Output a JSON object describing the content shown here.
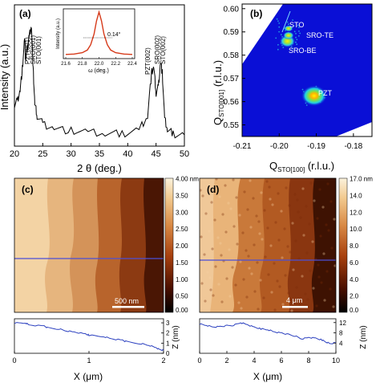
{
  "figure": {
    "panel_a": {
      "label": "(a)",
      "ylabel": "Intensity (a.u.)",
      "xlabel": "2 θ (deg.)",
      "xticks": [
        "20",
        "25",
        "30",
        "35",
        "40",
        "45",
        "50"
      ],
      "peak_labels": [
        "PZT(001)",
        "SRO(001)",
        "STO(001)",
        "PZT(002)",
        "SRO(002)",
        "STO(002)"
      ],
      "inset": {
        "ylabel": "Intensity (a.u.)",
        "xlabel": "ω (deg.)",
        "xticks": [
          "21.6",
          "21.8",
          "22.0",
          "22.2",
          "22.4"
        ],
        "fwhm_label": "0.14°"
      }
    },
    "panel_b": {
      "label": "(b)",
      "xlabel": "Q",
      "xlabel_sub": "STO[100]",
      "xlabel_unit": " (r.l.u.)",
      "ylabel": "Q",
      "ylabel_sub": "STO[001]",
      "ylabel_unit": " (r.l.u.)",
      "xticks": [
        "-0.21",
        "-0.20",
        "-0.19",
        "-0.18"
      ],
      "yticks": [
        "0.55",
        "0.56",
        "0.57",
        "0.58",
        "0.59",
        "0.60"
      ],
      "spot_labels": [
        "STO",
        "SRO-TE",
        "SRO-BE",
        "PZT"
      ]
    },
    "panel_c": {
      "label": "(c)",
      "colorbar_ticks": [
        "4.00 nm",
        "3.50",
        "3.00",
        "2.50",
        "2.00",
        "1.50",
        "1.00",
        "0.50",
        "0.00"
      ],
      "scalebar": "500 nm",
      "profile_yticks": [
        "0",
        "1",
        "2",
        "3"
      ],
      "profile_ylabel": "Z (nm)",
      "profile_xticks": [
        "0",
        "1",
        "2"
      ],
      "profile_xlabel": "X (μm)"
    },
    "panel_d": {
      "label": "(d)",
      "colorbar_ticks": [
        "17.0 nm",
        "14.0",
        "12.0",
        "10.0",
        "8.0",
        "6.0",
        "4.0",
        "2.0",
        "0.0"
      ],
      "scalebar": "4 μm",
      "profile_yticks": [
        "4",
        "8",
        "12"
      ],
      "profile_ylabel": "Z (nm)",
      "profile_xticks": [
        "0",
        "2",
        "4",
        "6",
        "8",
        "10"
      ],
      "profile_xlabel": "X (μm)"
    }
  },
  "chart_data": [
    {
      "type": "line",
      "title": "",
      "xlabel": "2 θ (deg.)",
      "ylabel": "Intensity (a.u.)",
      "xlim": [
        20,
        50
      ],
      "x": [
        20,
        20.5,
        21,
        21.4,
        21.8,
        22.0,
        22.3,
        22.6,
        23.0,
        23.3,
        23.6,
        24,
        25,
        27,
        30,
        33,
        36,
        39,
        42,
        43.5,
        44.2,
        44.6,
        45.0,
        45.4,
        45.8,
        46.1,
        46.5,
        47,
        48,
        50
      ],
      "y": [
        0.3,
        0.32,
        0.4,
        0.55,
        0.76,
        0.62,
        0.7,
        0.78,
        0.86,
        0.55,
        0.3,
        0.22,
        0.16,
        0.13,
        0.11,
        0.1,
        0.09,
        0.09,
        0.12,
        0.22,
        0.52,
        0.56,
        0.38,
        0.42,
        0.6,
        0.52,
        0.2,
        0.12,
        0.09,
        0.08
      ]
    },
    {
      "type": "line",
      "title": "",
      "xlabel": "ω (deg.)",
      "ylabel": "Intensity (a.u.)",
      "xlim": [
        21.6,
        22.4
      ],
      "x": [
        21.6,
        21.7,
        21.8,
        21.86,
        21.9,
        21.94,
        21.97,
        22.0,
        22.03,
        22.06,
        22.1,
        22.14,
        22.2,
        22.3,
        22.4
      ],
      "y": [
        0.04,
        0.05,
        0.08,
        0.14,
        0.26,
        0.5,
        0.8,
        1.0,
        0.8,
        0.5,
        0.26,
        0.14,
        0.08,
        0.05,
        0.04
      ],
      "fwhm": 0.14
    },
    {
      "type": "scatter",
      "title": "",
      "xlabel": "Q STO[100] (r.l.u.)",
      "ylabel": "Q STO[001] (r.l.u.)",
      "xlim": [
        -0.21,
        -0.175
      ],
      "ylim": [
        0.545,
        0.602
      ],
      "points": [
        {
          "name": "STO",
          "x": -0.1975,
          "y": 0.5915
        },
        {
          "name": "SRO-TE",
          "x": -0.1975,
          "y": 0.5885
        },
        {
          "name": "SRO-BE",
          "x": -0.1978,
          "y": 0.586
        },
        {
          "name": "PZT",
          "x": -0.1906,
          "y": 0.5625
        }
      ]
    },
    {
      "type": "line",
      "title": "",
      "xlabel": "X (μm)",
      "ylabel": "Z (nm)",
      "xlim": [
        0,
        2
      ],
      "ylim": [
        0,
        3.4
      ],
      "x": [
        0,
        0.15,
        0.2,
        0.4,
        0.45,
        0.6,
        0.7,
        0.8,
        0.95,
        1.0,
        1.2,
        1.3,
        1.45,
        1.5,
        1.7,
        1.8,
        1.9,
        1.95,
        2.0
      ],
      "y": [
        3.0,
        3.0,
        2.8,
        2.7,
        2.5,
        2.4,
        2.2,
        2.1,
        1.9,
        1.8,
        1.65,
        1.45,
        1.3,
        1.15,
        0.95,
        0.8,
        0.55,
        0.35,
        0.3
      ]
    },
    {
      "type": "line",
      "title": "",
      "xlabel": "X (μm)",
      "ylabel": "Z (nm)",
      "xlim": [
        0,
        10
      ],
      "ylim": [
        0,
        13.5
      ],
      "x": [
        0,
        0.5,
        1.0,
        1.5,
        2.0,
        2.5,
        3.0,
        3.5,
        4.0,
        4.5,
        5.0,
        5.5,
        6.0,
        6.5,
        7.0,
        7.5,
        8.0,
        8.5,
        9.0,
        9.3,
        9.6,
        10.0
      ],
      "y": [
        11.5,
        11.0,
        10.3,
        10.5,
        10.8,
        11.0,
        12.0,
        11.2,
        10.2,
        9.6,
        9.3,
        8.4,
        8.0,
        7.4,
        6.8,
        5.6,
        6.2,
        5.9,
        5.2,
        4.4,
        3.8,
        4.2
      ]
    }
  ],
  "colors": {
    "xrd_line": "#000000",
    "inset_line": "#d63a1a",
    "profile_line": "#2a3fbf",
    "rsm_background": "#0a0fd6",
    "afm_dark": "#2a0800",
    "afm_mid": "#b8561e",
    "afm_light": "#f6dcb0"
  }
}
